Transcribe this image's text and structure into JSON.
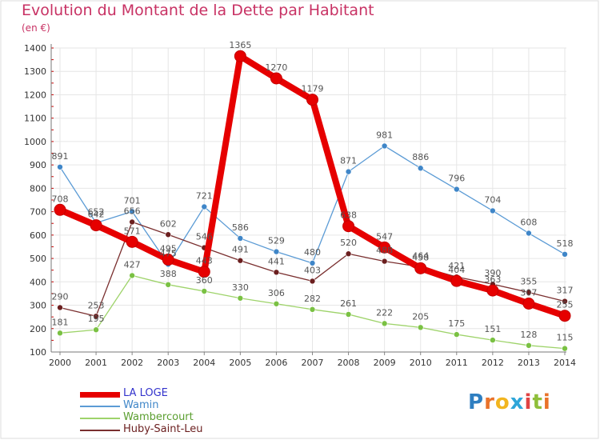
{
  "title": "Evolution du Montant de la Dette par Habitant",
  "unit": "(en €)",
  "logo": {
    "letters": [
      "P",
      "r",
      "o",
      "x",
      "i",
      "t",
      "i"
    ],
    "colors": [
      "#2f7fc1",
      "#e9722a",
      "#f2b51f",
      "#2fa6d9",
      "#e04343",
      "#8fbf3a",
      "#e9722a"
    ]
  },
  "colors": {
    "title": "#c83264",
    "axis": "#555555",
    "grid": "#e6e6e6",
    "axis_tick_red": "#cc0000"
  },
  "chart_data": {
    "type": "line",
    "title": "Evolution du Montant de la Dette par Habitant",
    "ylabel": "(en €)",
    "x": [
      2000,
      2001,
      2002,
      2003,
      2004,
      2005,
      2006,
      2007,
      2008,
      2009,
      2010,
      2011,
      2012,
      2013,
      2014
    ],
    "ylim": [
      100,
      1400
    ],
    "yticks": [
      100,
      200,
      300,
      400,
      500,
      600,
      700,
      800,
      900,
      1000,
      1100,
      1200,
      1300,
      1400
    ],
    "grid": true,
    "legend_position": "bottom-left",
    "series": [
      {
        "name": "LA LOGE",
        "color": "#e60000",
        "marker": "#e60000",
        "width": 8,
        "labelColor": "#555555",
        "values": [
          708,
          642,
          571,
          495,
          443,
          1365,
          1270,
          1179,
          638,
          547,
          458,
          404,
          363,
          307,
          255
        ]
      },
      {
        "name": "Wamin",
        "color": "#5b9bd5",
        "marker": "#3f86c8",
        "width": 1.3,
        "labelColor": "#555555",
        "values": [
          891,
          652,
          701,
          475,
          721,
          586,
          529,
          480,
          871,
          981,
          886,
          796,
          704,
          608,
          518
        ]
      },
      {
        "name": "Wambercourt",
        "color": "#9ed36a",
        "marker": "#7ac143",
        "width": 1.3,
        "labelColor": "#555555",
        "values": [
          181,
          195,
          427,
          388,
          360,
          330,
          306,
          282,
          261,
          222,
          205,
          175,
          151,
          128,
          115
        ]
      },
      {
        "name": "Huby-Saint-Leu",
        "color": "#7a2f2f",
        "marker": "#6b1f1f",
        "width": 1.3,
        "labelColor": "#555555",
        "values": [
          290,
          253,
          656,
          602,
          546,
          491,
          441,
          403,
          520,
          488,
          464,
          421,
          390,
          355,
          317
        ]
      }
    ]
  }
}
